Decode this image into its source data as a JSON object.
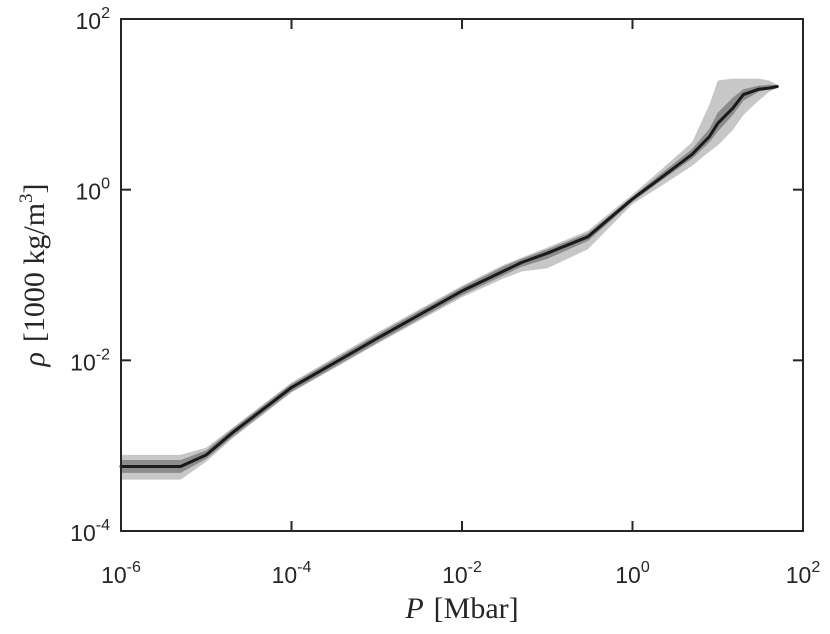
{
  "chart_data": {
    "type": "area",
    "title": "",
    "xlabel": {
      "var": "P",
      "unit": "[Mbar]"
    },
    "ylabel": {
      "var": "ρ",
      "unit_prefix": "[1000 kg/m",
      "unit_exp": "3",
      "unit_suffix": "]"
    },
    "xscale": "log",
    "yscale": "log",
    "xlim": [
      1e-06,
      100
    ],
    "ylim": [
      0.0001,
      100
    ],
    "grid": false,
    "legend": "none",
    "x_ticks": [
      {
        "base": "10",
        "exp": "-6",
        "value": 1e-06
      },
      {
        "base": "10",
        "exp": "-4",
        "value": 0.0001
      },
      {
        "base": "10",
        "exp": "-2",
        "value": 0.01
      },
      {
        "base": "10",
        "exp": "0",
        "value": 1
      },
      {
        "base": "10",
        "exp": "2",
        "value": 100
      }
    ],
    "y_ticks": [
      {
        "base": "10",
        "exp": "-4",
        "value": 0.0001
      },
      {
        "base": "10",
        "exp": "-2",
        "value": 0.01
      },
      {
        "base": "10",
        "exp": "0",
        "value": 1
      },
      {
        "base": "10",
        "exp": "2",
        "value": 100
      }
    ],
    "colors": {
      "outer_band": "#c7c7c7",
      "inner_band": "#8c8c8c",
      "median": "#1a1a1a",
      "axis": "#262626"
    },
    "series": [
      {
        "role": "median",
        "x": [
          1e-06,
          5e-06,
          1e-05,
          2e-05,
          0.0001,
          0.001,
          0.01,
          0.03,
          0.05,
          0.1,
          0.3,
          1,
          2,
          5,
          8,
          10,
          15,
          20,
          30,
          40,
          50
        ],
        "y": [
          0.00057,
          0.00057,
          0.00078,
          0.0014,
          0.0048,
          0.018,
          0.065,
          0.11,
          0.14,
          0.18,
          0.28,
          0.78,
          1.3,
          2.6,
          4.2,
          6.0,
          9.0,
          13.0,
          15.0,
          15.5,
          16.2
        ]
      },
      {
        "role": "inner-band",
        "x": [
          1e-06,
          5e-06,
          1e-05,
          2e-05,
          0.0001,
          0.001,
          0.01,
          0.03,
          0.05,
          0.1,
          0.3,
          1,
          2,
          5,
          8,
          10,
          15,
          20,
          30,
          40,
          50
        ],
        "upper": [
          0.00068,
          0.00068,
          0.00088,
          0.00155,
          0.0053,
          0.02,
          0.072,
          0.125,
          0.155,
          0.2,
          0.31,
          0.83,
          1.45,
          3.0,
          5.2,
          8.0,
          12.0,
          15.0,
          16.5,
          17.0,
          16.8
        ],
        "lower": [
          0.00048,
          0.00048,
          0.0007,
          0.00125,
          0.0043,
          0.016,
          0.058,
          0.098,
          0.125,
          0.155,
          0.25,
          0.72,
          1.2,
          2.3,
          3.6,
          4.8,
          7.5,
          11.0,
          14.0,
          15.0,
          15.8
        ]
      },
      {
        "role": "outer-band",
        "x": [
          1e-06,
          5e-06,
          1e-05,
          2e-05,
          0.0001,
          0.001,
          0.01,
          0.03,
          0.05,
          0.1,
          0.3,
          1,
          2,
          5,
          8,
          10,
          15,
          20,
          30,
          40,
          50
        ],
        "upper": [
          0.00078,
          0.00078,
          0.00095,
          0.0016,
          0.0055,
          0.021,
          0.075,
          0.13,
          0.16,
          0.21,
          0.33,
          0.88,
          1.6,
          3.6,
          10.0,
          19.0,
          20.0,
          20.0,
          20.0,
          19.0,
          17.0
        ],
        "lower": [
          0.0004,
          0.0004,
          0.00065,
          0.0012,
          0.0042,
          0.0155,
          0.055,
          0.09,
          0.11,
          0.12,
          0.2,
          0.68,
          1.05,
          1.9,
          2.8,
          3.3,
          5.0,
          7.5,
          11.0,
          14.0,
          15.5
        ]
      }
    ]
  }
}
